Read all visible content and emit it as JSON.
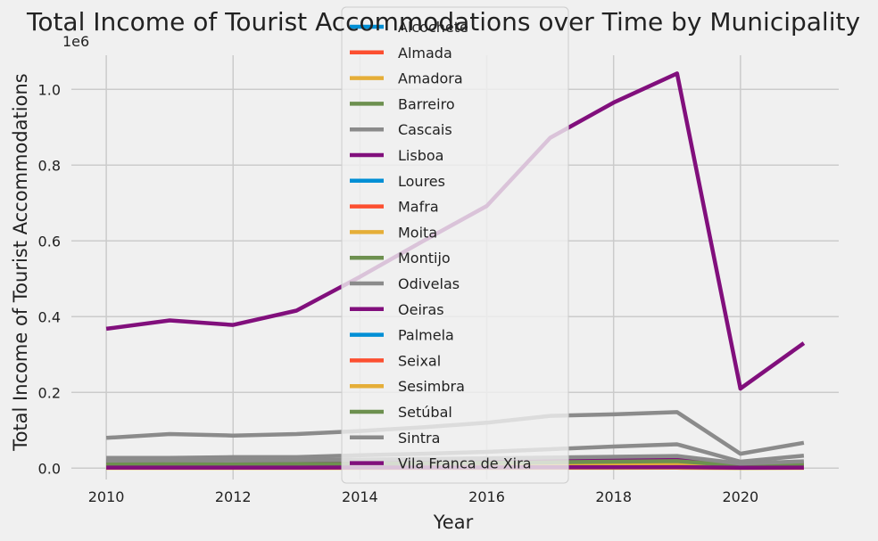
{
  "chart_data": {
    "type": "line",
    "title": "Total Income of Tourist Accommodations over Time by Municipality",
    "xlabel": "Year",
    "ylabel": "Total Income of Tourist Accommodations",
    "y_offset_label": "1e6",
    "xlim": [
      2009.45,
      2021.55
    ],
    "ylim": [
      -30000,
      1090000
    ],
    "x_ticks": [
      2010,
      2012,
      2014,
      2016,
      2018,
      2020
    ],
    "x_tick_labels": [
      "2010",
      "2012",
      "2014",
      "2016",
      "2018",
      "2020"
    ],
    "y_ticks": [
      0,
      200000,
      400000,
      600000,
      800000,
      1000000
    ],
    "y_tick_labels": [
      "0.0",
      "0.2",
      "0.4",
      "0.6",
      "0.8",
      "1.0"
    ],
    "grid": true,
    "legend_position": "top-center",
    "x": [
      2010,
      2011,
      2012,
      2013,
      2014,
      2015,
      2016,
      2017,
      2018,
      2019,
      2020,
      2021
    ],
    "series": [
      {
        "name": "Alcochete",
        "color": "#008fd5",
        "values": [
          1000,
          1000,
          1000,
          1000,
          1200,
          1300,
          1500,
          1800,
          2000,
          2200,
          800,
          1200
        ]
      },
      {
        "name": "Almada",
        "color": "#fc4f30",
        "values": [
          9000,
          9500,
          9000,
          9500,
          10000,
          11000,
          12000,
          14000,
          15000,
          16000,
          6000,
          9000
        ]
      },
      {
        "name": "Amadora",
        "color": "#e5ae38",
        "values": [
          3000,
          3000,
          3000,
          3200,
          3500,
          3800,
          4200,
          4800,
          5200,
          5600,
          2000,
          3000
        ]
      },
      {
        "name": "Barreiro",
        "color": "#6d904f",
        "values": [
          1500,
          1500,
          1500,
          1600,
          1700,
          1800,
          2000,
          2200,
          2400,
          2600,
          1000,
          1500
        ]
      },
      {
        "name": "Cascais",
        "color": "#8b8b8b",
        "values": [
          80000,
          90000,
          86000,
          90000,
          98000,
          108000,
          120000,
          138000,
          142000,
          148000,
          38000,
          67000
        ]
      },
      {
        "name": "Lisboa",
        "color": "#810f7c",
        "values": [
          368000,
          390000,
          378000,
          416000,
          505000,
          600000,
          692000,
          872000,
          965000,
          1042000,
          210000,
          330000
        ]
      },
      {
        "name": "Loures",
        "color": "#008fd5",
        "values": [
          4000,
          4200,
          4000,
          4300,
          4600,
          5000,
          5500,
          6200,
          6600,
          7000,
          2500,
          4000
        ]
      },
      {
        "name": "Mafra",
        "color": "#fc4f30",
        "values": [
          5000,
          5200,
          5000,
          5300,
          5800,
          6300,
          7000,
          7800,
          8300,
          8800,
          3500,
          5500
        ]
      },
      {
        "name": "Moita",
        "color": "#e5ae38",
        "values": [
          500,
          500,
          500,
          500,
          600,
          600,
          700,
          800,
          900,
          1000,
          400,
          500
        ]
      },
      {
        "name": "Montijo",
        "color": "#6d904f",
        "values": [
          7000,
          7200,
          7000,
          7400,
          8000,
          8600,
          9500,
          10500,
          11500,
          12500,
          9000,
          13000
        ]
      },
      {
        "name": "Odivelas",
        "color": "#8b8b8b",
        "values": [
          27000,
          27000,
          29000,
          29000,
          34000,
          38000,
          43000,
          50000,
          57000,
          63000,
          17000,
          33000
        ]
      },
      {
        "name": "Oeiras",
        "color": "#810f7c",
        "values": [
          17000,
          17500,
          17000,
          18000,
          19500,
          21000,
          22500,
          25000,
          26000,
          27000,
          8000,
          12000
        ]
      },
      {
        "name": "Palmela",
        "color": "#008fd5",
        "values": [
          2500,
          2600,
          2500,
          2700,
          2900,
          3100,
          3400,
          3800,
          4100,
          4400,
          2000,
          3000
        ]
      },
      {
        "name": "Seixal",
        "color": "#fc4f30",
        "values": [
          1500,
          1500,
          1500,
          1500,
          1600,
          1700,
          1900,
          2100,
          2300,
          2500,
          1000,
          1500
        ]
      },
      {
        "name": "Sesimbra",
        "color": "#e5ae38",
        "values": [
          6000,
          6200,
          6000,
          6300,
          6800,
          7300,
          8000,
          9000,
          9500,
          10000,
          4500,
          7000
        ]
      },
      {
        "name": "Setúbal",
        "color": "#6d904f",
        "values": [
          10000,
          10500,
          10000,
          10800,
          11500,
          12500,
          13800,
          15500,
          17000,
          18500,
          6500,
          11000
        ]
      },
      {
        "name": "Sintra",
        "color": "#8b8b8b",
        "values": [
          20000,
          20500,
          20000,
          21000,
          22500,
          24000,
          26000,
          28000,
          30000,
          32000,
          12000,
          18000
        ]
      },
      {
        "name": "Vila Franca de Xira",
        "color": "#810f7c",
        "values": [
          1500,
          1600,
          1500,
          1600,
          1700,
          1800,
          2000,
          2200,
          2400,
          2600,
          1000,
          1500
        ]
      }
    ]
  }
}
